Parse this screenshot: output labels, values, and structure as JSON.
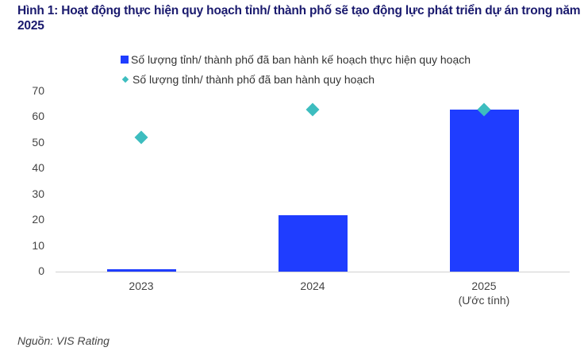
{
  "title": "Hình 1: Hoạt động thực hiện quy hoạch tỉnh/ thành phố sẽ tạo động lực phát triển dự án trong năm 2025",
  "source": "Nguồn: VIS Rating",
  "legend": [
    {
      "label": "Số lượng tỉnh/ thành phố đã ban hành kế hoạch thực hiện quy hoạch",
      "color": "#1f3dff",
      "marker": "square"
    },
    {
      "label": "Số lượng tỉnh/ thành phố đã ban hành quy hoạch",
      "color": "#3dbdbf",
      "marker": "diamond"
    }
  ],
  "yticks": [
    "70",
    "60",
    "50",
    "40",
    "30",
    "20",
    "10",
    "0"
  ],
  "xlabels": [
    {
      "line1": "2023",
      "line2": ""
    },
    {
      "line1": "2024",
      "line2": ""
    },
    {
      "line1": "2025",
      "line2": "(Ước tính)"
    }
  ],
  "chart_data": {
    "type": "bar",
    "title": "Hình 1: Hoạt động thực hiện quy hoạch tỉnh/ thành phố sẽ tạo động lực phát triển dự án trong năm 2025",
    "categories": [
      "2023",
      "2024",
      "2025 (Ước tính)"
    ],
    "series": [
      {
        "name": "Số lượng tỉnh/ thành phố đã ban hành kế hoạch thực hiện quy hoạch",
        "type": "bar",
        "color": "#1f3dff",
        "values": [
          1,
          22,
          63
        ]
      },
      {
        "name": "Số lượng tỉnh/ thành phố đã ban hành quy hoạch",
        "type": "scatter",
        "marker": "diamond",
        "color": "#3dbdbf",
        "values": [
          52,
          63,
          63
        ]
      }
    ],
    "xlabel": "",
    "ylabel": "",
    "ylim": [
      0,
      70
    ],
    "yticks": [
      0,
      10,
      20,
      30,
      40,
      50,
      60,
      70
    ],
    "grid": false,
    "legend_position": "top"
  }
}
